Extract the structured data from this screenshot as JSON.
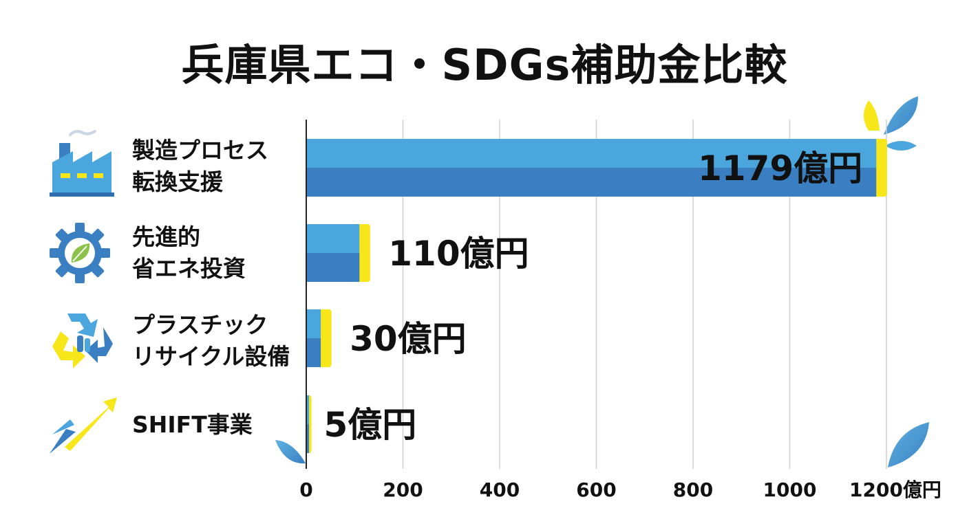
{
  "chart_data": {
    "type": "bar",
    "orientation": "horizontal",
    "title": "兵庫県エコ・SDGs補助金比較",
    "categories": [
      "製造プロセス\n転換支援",
      "先進的\n省エネ投資",
      "プラスチック\nリサイクル設備",
      "SHIFT事業"
    ],
    "values": [
      1179,
      110,
      30,
      5
    ],
    "value_labels": [
      "1179億円",
      "110億円",
      "30億円",
      "5億円"
    ],
    "xlim": [
      0,
      1200
    ],
    "x_ticks": [
      0,
      200,
      400,
      600,
      800,
      1000,
      1200
    ],
    "x_tick_labels": [
      "0",
      "200",
      "400",
      "600",
      "800",
      "1000",
      "1200億円"
    ],
    "grid": true,
    "colors": {
      "bar_top": "#4aa6dc",
      "bar_bottom": "#3a7fc2",
      "bar_cap": "#f7e619",
      "grid": "#cfcfcf",
      "axis": "#222222"
    },
    "icons": [
      "factory-icon",
      "gear-leaf-icon",
      "recycle-icon",
      "rocket-arrow-icon"
    ]
  }
}
